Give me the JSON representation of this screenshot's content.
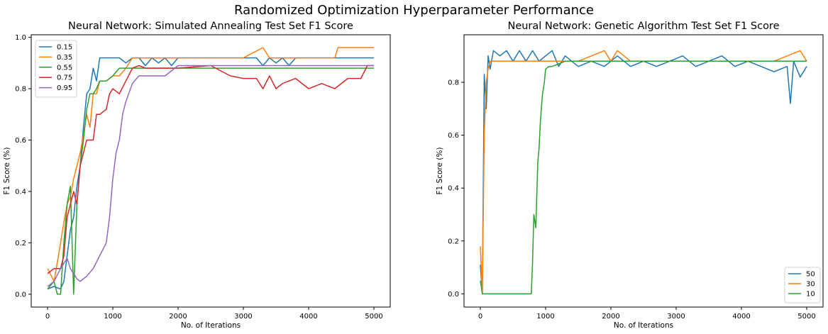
{
  "suptitle": "Randomized Optimization Hyperparameter Performance",
  "chart_data": [
    {
      "type": "line",
      "title": "Neural Network: Simulated Annealing Test Set F1 Score",
      "xlabel": "No. of Iterations",
      "ylabel": "F1 Score (%)",
      "xlim": [
        -250,
        5250
      ],
      "ylim": [
        -0.05,
        1.01
      ],
      "xticks": [
        0,
        1000,
        2000,
        3000,
        4000,
        5000
      ],
      "yticks": [
        0.0,
        0.2,
        0.4,
        0.6,
        0.8,
        1.0
      ],
      "grid": false,
      "legend_position": "top-left",
      "series": [
        {
          "name": "0.15",
          "color": "#1f77b4",
          "x": [
            0,
            100,
            200,
            250,
            300,
            350,
            400,
            450,
            500,
            550,
            600,
            650,
            700,
            750,
            800,
            850,
            900,
            1000,
            1100,
            1200,
            1300,
            1400,
            1500,
            1600,
            1700,
            1800,
            1900,
            2000,
            2500,
            3000,
            3200,
            3300,
            3400,
            3500,
            3600,
            3700,
            3800,
            3900,
            4000,
            4200,
            4400,
            4600,
            4800,
            4900,
            5000
          ],
          "y": [
            0.02,
            0.03,
            0.02,
            0.05,
            0.15,
            0.25,
            0.3,
            0.42,
            0.5,
            0.65,
            0.78,
            0.8,
            0.88,
            0.83,
            0.92,
            0.92,
            0.92,
            0.92,
            0.92,
            0.9,
            0.92,
            0.92,
            0.89,
            0.92,
            0.9,
            0.92,
            0.89,
            0.92,
            0.92,
            0.92,
            0.92,
            0.89,
            0.92,
            0.9,
            0.92,
            0.89,
            0.92,
            0.92,
            0.92,
            0.92,
            0.92,
            0.92,
            0.92,
            0.92,
            0.92
          ]
        },
        {
          "name": "0.35",
          "color": "#ff7f0e",
          "x": [
            0,
            100,
            200,
            250,
            300,
            350,
            400,
            450,
            500,
            550,
            600,
            650,
            700,
            750,
            800,
            900,
            1000,
            1100,
            1200,
            1300,
            1400,
            1600,
            2000,
            2500,
            3000,
            3300,
            3400,
            3500,
            4000,
            4400,
            4450,
            4500,
            5000
          ],
          "y": [
            0.1,
            0.05,
            0.2,
            0.28,
            0.35,
            0.38,
            0.45,
            0.5,
            0.55,
            0.62,
            0.7,
            0.65,
            0.78,
            0.78,
            0.83,
            0.83,
            0.85,
            0.85,
            0.88,
            0.92,
            0.92,
            0.92,
            0.92,
            0.92,
            0.92,
            0.96,
            0.92,
            0.92,
            0.92,
            0.92,
            0.96,
            0.96,
            0.96
          ]
        },
        {
          "name": "0.55",
          "color": "#2ca02c",
          "x": [
            0,
            100,
            150,
            200,
            250,
            300,
            350,
            400,
            450,
            500,
            550,
            600,
            650,
            700,
            750,
            800,
            900,
            1000,
            1100,
            1200,
            1300,
            1500,
            2000,
            2500,
            3000,
            3500,
            4000,
            4500,
            5000
          ],
          "y": [
            0.02,
            0.05,
            0.0,
            0.0,
            0.2,
            0.35,
            0.42,
            0.0,
            0.35,
            0.5,
            0.6,
            0.72,
            0.78,
            0.78,
            0.8,
            0.83,
            0.83,
            0.85,
            0.88,
            0.88,
            0.88,
            0.88,
            0.88,
            0.88,
            0.88,
            0.88,
            0.88,
            0.88,
            0.88
          ]
        },
        {
          "name": "0.75",
          "color": "#d62728",
          "x": [
            0,
            100,
            200,
            250,
            300,
            350,
            400,
            450,
            500,
            600,
            700,
            750,
            800,
            900,
            950,
            1000,
            1100,
            1200,
            1300,
            1400,
            1500,
            2000,
            2500,
            2800,
            3000,
            3200,
            3300,
            3400,
            3500,
            3600,
            3800,
            4000,
            4200,
            4400,
            4600,
            4800,
            4900,
            5000
          ],
          "y": [
            0.08,
            0.1,
            0.1,
            0.15,
            0.3,
            0.35,
            0.4,
            0.35,
            0.5,
            0.6,
            0.6,
            0.7,
            0.7,
            0.72,
            0.78,
            0.8,
            0.78,
            0.83,
            0.88,
            0.89,
            0.88,
            0.88,
            0.89,
            0.85,
            0.84,
            0.84,
            0.8,
            0.85,
            0.8,
            0.82,
            0.84,
            0.8,
            0.82,
            0.8,
            0.84,
            0.84,
            0.89,
            0.89
          ]
        },
        {
          "name": "0.95",
          "color": "#9467bd",
          "x": [
            0,
            100,
            200,
            250,
            300,
            350,
            400,
            450,
            500,
            600,
            700,
            800,
            900,
            950,
            1000,
            1050,
            1100,
            1150,
            1200,
            1300,
            1400,
            1500,
            1800,
            2000,
            2500,
            3000,
            3500,
            4000,
            4500,
            5000
          ],
          "y": [
            0.03,
            0.05,
            0.1,
            0.12,
            0.14,
            0.1,
            0.08,
            0.06,
            0.05,
            0.07,
            0.1,
            0.15,
            0.2,
            0.3,
            0.45,
            0.55,
            0.6,
            0.7,
            0.75,
            0.82,
            0.85,
            0.85,
            0.85,
            0.89,
            0.89,
            0.89,
            0.89,
            0.89,
            0.89,
            0.89
          ]
        }
      ]
    },
    {
      "type": "line",
      "title": "Neural Network: Genetic Algorithm Test Set F1 Score",
      "xlabel": "No. of Iterations",
      "ylabel": "F1 Score (%)",
      "xlim": [
        -250,
        5250
      ],
      "ylim": [
        -0.05,
        0.98
      ],
      "xticks": [
        0,
        1000,
        2000,
        3000,
        4000,
        5000
      ],
      "yticks": [
        0.0,
        0.2,
        0.4,
        0.6,
        0.8
      ],
      "grid": false,
      "legend_position": "bottom-right",
      "series": [
        {
          "name": "50",
          "color": "#1f77b4",
          "x": [
            0,
            30,
            60,
            90,
            120,
            150,
            200,
            300,
            400,
            500,
            600,
            700,
            800,
            900,
            1000,
            1100,
            1200,
            1300,
            1400,
            1500,
            1700,
            1900,
            2100,
            2300,
            2500,
            2700,
            2900,
            3100,
            3300,
            3500,
            3700,
            3900,
            4100,
            4300,
            4500,
            4700,
            4750,
            4800,
            4900,
            5000
          ],
          "y": [
            0.11,
            0.0,
            0.83,
            0.7,
            0.9,
            0.85,
            0.92,
            0.9,
            0.92,
            0.88,
            0.92,
            0.88,
            0.92,
            0.88,
            0.9,
            0.92,
            0.86,
            0.9,
            0.88,
            0.86,
            0.88,
            0.86,
            0.9,
            0.86,
            0.88,
            0.86,
            0.88,
            0.9,
            0.86,
            0.88,
            0.9,
            0.86,
            0.88,
            0.86,
            0.84,
            0.86,
            0.72,
            0.88,
            0.82,
            0.86
          ]
        },
        {
          "name": "30",
          "color": "#ff7f0e",
          "x": [
            0,
            30,
            60,
            90,
            120,
            150,
            200,
            300,
            400,
            600,
            800,
            1000,
            1200,
            1500,
            1900,
            2000,
            2100,
            2300,
            2500,
            3000,
            3500,
            4000,
            4500,
            4900,
            5000
          ],
          "y": [
            0.18,
            0.0,
            0.6,
            0.8,
            0.85,
            0.88,
            0.88,
            0.88,
            0.88,
            0.88,
            0.88,
            0.88,
            0.88,
            0.88,
            0.92,
            0.88,
            0.92,
            0.88,
            0.88,
            0.88,
            0.88,
            0.88,
            0.88,
            0.92,
            0.88
          ]
        },
        {
          "name": "10",
          "color": "#2ca02c",
          "x": [
            0,
            30,
            60,
            100,
            200,
            400,
            600,
            780,
            800,
            820,
            850,
            880,
            900,
            920,
            950,
            980,
            1000,
            1050,
            1100,
            1200,
            1300,
            1500,
            2000,
            2500,
            3000,
            3500,
            4000,
            4500,
            5000
          ],
          "y": [
            0.05,
            0.0,
            0.0,
            0.0,
            0.0,
            0.0,
            0.0,
            0.0,
            0.12,
            0.3,
            0.25,
            0.5,
            0.55,
            0.65,
            0.75,
            0.8,
            0.85,
            0.86,
            0.86,
            0.87,
            0.88,
            0.88,
            0.88,
            0.88,
            0.88,
            0.88,
            0.88,
            0.88,
            0.88
          ]
        }
      ]
    }
  ]
}
